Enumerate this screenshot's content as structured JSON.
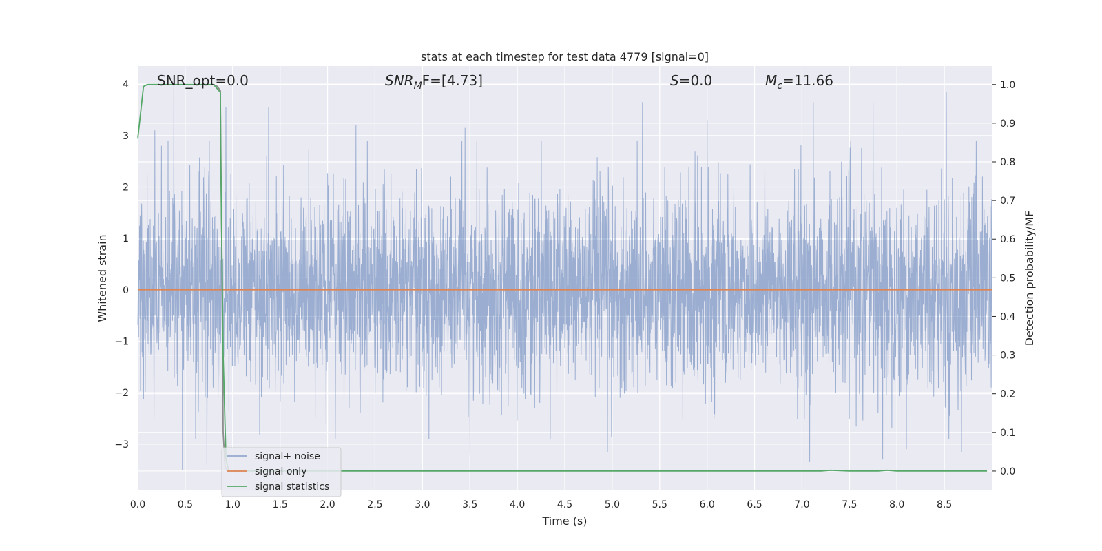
{
  "chart_data": {
    "type": "line",
    "title": "stats at each timestep for test data 4779 [signal=0]",
    "xlabel": "Time (s)",
    "ylabel_left": "Whitened strain",
    "ylabel_right": "Detection probability/MF",
    "xlim": [
      0.0,
      9.0
    ],
    "ylim_left": [
      -3.9,
      4.35
    ],
    "ylim_right": [
      -0.05,
      1.0477
    ],
    "xticks": [
      "0.0",
      "0.5",
      "1.0",
      "1.5",
      "2.0",
      "2.5",
      "3.0",
      "3.5",
      "4.0",
      "4.5",
      "5.0",
      "5.5",
      "6.0",
      "6.5",
      "7.0",
      "7.5",
      "8.0",
      "8.5"
    ],
    "yticks_left": [
      "4",
      "3",
      "2",
      "1",
      "0",
      "−1",
      "−2",
      "−3"
    ],
    "yticks_right": [
      "1.0",
      "0.9",
      "0.8",
      "0.7",
      "0.6",
      "0.5",
      "0.4",
      "0.3",
      "0.2",
      "0.1",
      "0.0"
    ],
    "grid": true,
    "legend_placement": "lower-left",
    "annotations": {
      "snr_opt": "SNR_opt=0.0",
      "snr_mf_main": "SNR",
      "snr_mf_sub": "M",
      "snr_mf_rest": "F=[4.73]",
      "s_main": "S",
      "s_rest": "=0.0",
      "mc_main": "M",
      "mc_sub": "c",
      "mc_rest": "=11.66"
    },
    "series": [
      {
        "name": "signal+ noise",
        "color": "#4c72b0",
        "axis": "left",
        "description_values": {
          "typical_min": -2.5,
          "typical_max": 2.5,
          "spikes_up": [
            [
              0.38,
              4.0
            ],
            [
              0.18,
              3.1
            ],
            [
              0.25,
              2.8
            ],
            [
              1.38,
              3.55
            ],
            [
              0.93,
              3.55
            ],
            [
              3.45,
              3.15
            ],
            [
              5.32,
              3.65
            ],
            [
              6.0,
              3.3
            ],
            [
              7.12,
              3.65
            ],
            [
              7.75,
              3.65
            ],
            [
              8.52,
              3.85
            ],
            [
              2.3,
              3.2
            ]
          ],
          "spikes_down": [
            [
              0.47,
              -3.5
            ],
            [
              0.73,
              -3.4
            ],
            [
              3.5,
              -3.2
            ],
            [
              4.95,
              -3.15
            ],
            [
              7.08,
              -3.35
            ],
            [
              7.85,
              -3.3
            ],
            [
              8.1,
              -3.1
            ],
            [
              8.68,
              -3.15
            ]
          ]
        }
      },
      {
        "name": "signal only",
        "color": "#dd8452",
        "axis": "left",
        "values_constant": 0.0
      },
      {
        "name": "signal statistics",
        "color": "#55a868",
        "axis": "right",
        "x": [
          0.0,
          0.06,
          0.1,
          0.2,
          0.6,
          0.8,
          0.87,
          0.875,
          0.9,
          0.93,
          0.96,
          1.0,
          7.2,
          7.3,
          7.5,
          7.8,
          7.9,
          8.0,
          8.95
        ],
        "values": [
          0.86,
          0.995,
          1.0,
          1.0,
          1.0,
          1.0,
          0.98,
          0.8,
          0.3,
          0.03,
          0.0,
          0.0,
          0.0,
          0.002,
          0.0,
          0.0,
          0.002,
          0.0,
          0.0
        ]
      },
      {
        "name": "",
        "color": "#8c8c8c",
        "axis": "right",
        "x": [
          0.82,
          0.87,
          0.885,
          0.9,
          0.92,
          0.95
        ],
        "values": [
          1.0,
          0.985,
          0.6,
          0.1,
          0.01,
          0.0
        ]
      }
    ]
  }
}
